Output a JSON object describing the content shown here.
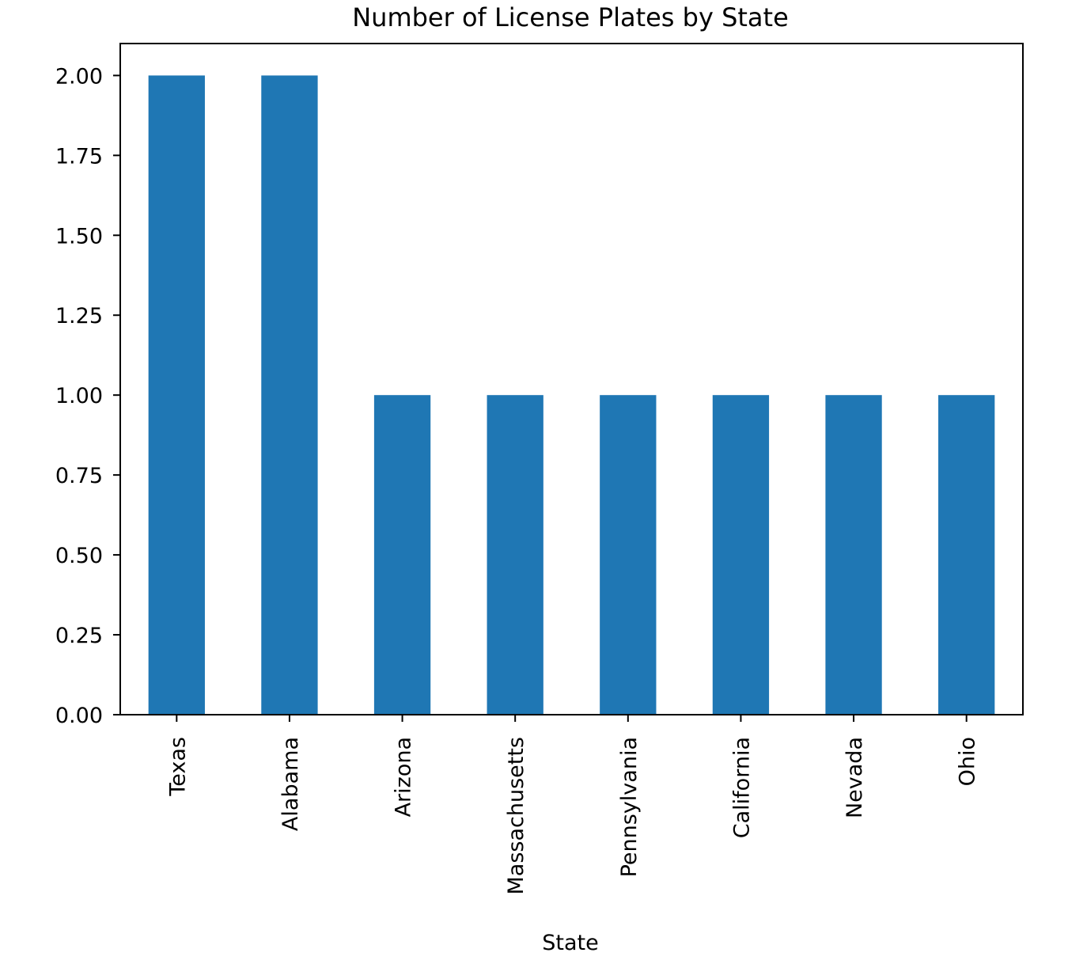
{
  "chart_data": {
    "type": "bar",
    "title": "Number of License Plates by State",
    "xlabel": "State",
    "ylabel": "",
    "categories": [
      "Texas",
      "Alabama",
      "Arizona",
      "Massachusetts",
      "Pennsylvania",
      "California",
      "Nevada",
      "Ohio"
    ],
    "values": [
      2,
      2,
      1,
      1,
      1,
      1,
      1,
      1
    ],
    "ylim": [
      0,
      2.1
    ],
    "yticks": [
      "0.00",
      "0.25",
      "0.50",
      "0.75",
      "1.00",
      "1.25",
      "1.50",
      "1.75",
      "2.00"
    ],
    "bar_color": "#1f77b4",
    "grid": false,
    "legend": "none"
  }
}
